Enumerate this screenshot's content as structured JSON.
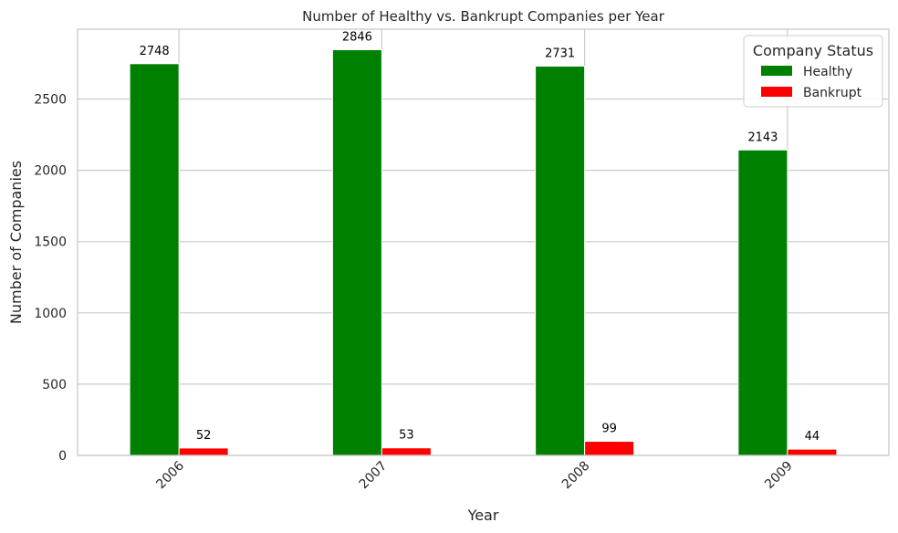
{
  "chart_data": {
    "type": "bar",
    "title": "Number of Healthy vs. Bankrupt Companies per Year",
    "xlabel": "Year",
    "ylabel": "Number of Companies",
    "categories": [
      "2006",
      "2007",
      "2008",
      "2009"
    ],
    "series": [
      {
        "name": "Healthy",
        "color": "#008000",
        "values": [
          2748,
          2846,
          2731,
          2143
        ]
      },
      {
        "name": "Bankrupt",
        "color": "#ff0000",
        "values": [
          52,
          53,
          99,
          44
        ]
      }
    ],
    "ylim": [
      0,
      2990
    ],
    "yticks": [
      0,
      500,
      1000,
      1500,
      2000,
      2500
    ],
    "grid": true,
    "legend": {
      "title": "Company Status",
      "position": "top-right"
    },
    "xtick_rotation": -45
  }
}
